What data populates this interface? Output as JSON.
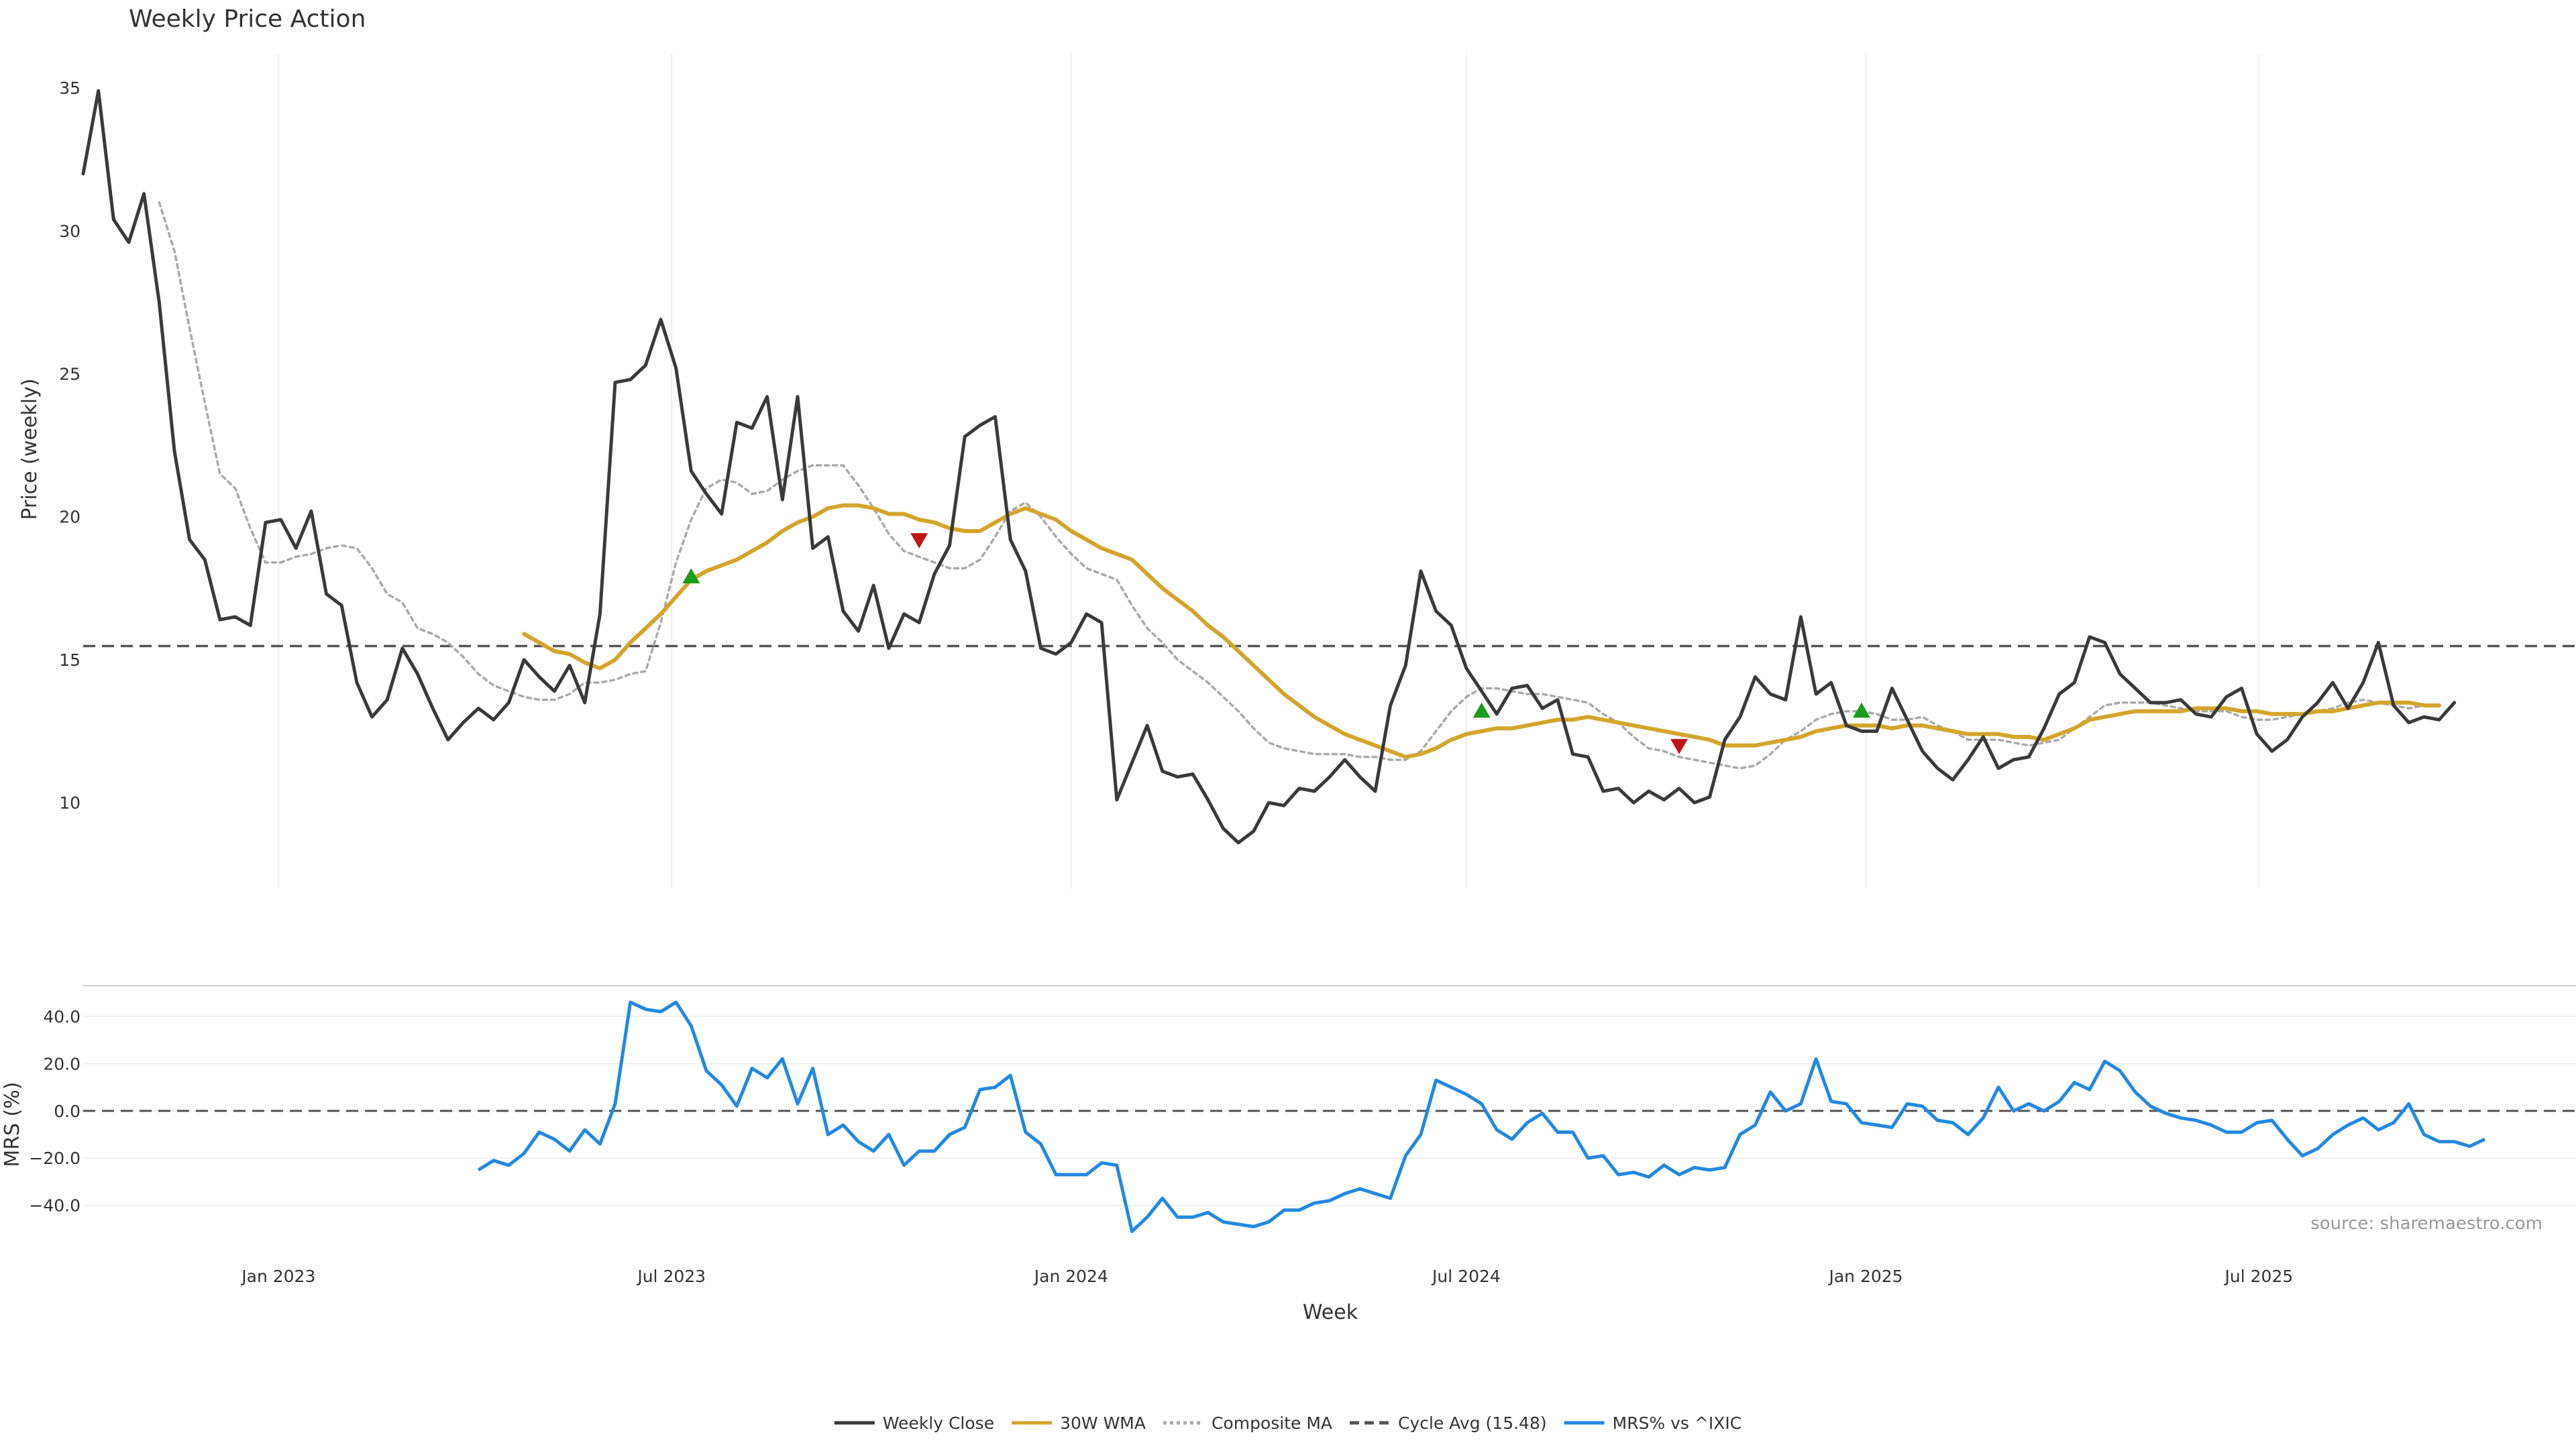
{
  "chart_data": {
    "type": "line",
    "title": "Weekly Price Action",
    "source": "source: sharemaestro.com",
    "xlabel": "Week",
    "x_range": [
      "2022-10-03",
      "2025-11-24"
    ],
    "x_ticks": [
      {
        "date": "2023-01-01",
        "label": "Jan 2023"
      },
      {
        "date": "2023-07-01",
        "label": "Jul 2023"
      },
      {
        "date": "2024-01-01",
        "label": "Jan 2024"
      },
      {
        "date": "2024-07-01",
        "label": "Jul 2024"
      },
      {
        "date": "2025-01-01",
        "label": "Jan 2025"
      },
      {
        "date": "2025-07-01",
        "label": "Jul 2025"
      }
    ],
    "price_panel": {
      "ylabel": "Price (weekly)",
      "ylim": [
        7,
        36.2
      ],
      "yticks": [
        10,
        15,
        20,
        25,
        30,
        35
      ],
      "cycle_avg": 15.48,
      "series": [
        {
          "key": "close",
          "name": "Weekly Close",
          "color": "#3a3a3a",
          "style": "solid",
          "start": "2022-10-03",
          "values": [
            32.0,
            34.9,
            30.4,
            29.6,
            31.3,
            27.5,
            22.3,
            19.2,
            18.5,
            16.4,
            16.5,
            16.2,
            19.8,
            19.9,
            18.9,
            20.2,
            17.3,
            16.9,
            14.2,
            13.0,
            13.6,
            15.4,
            14.5,
            13.3,
            12.2,
            12.8,
            13.3,
            12.9,
            13.5,
            15.0,
            14.4,
            13.9,
            14.8,
            13.5,
            16.6,
            24.7,
            24.8,
            25.3,
            26.9,
            25.2,
            21.6,
            20.8,
            20.1,
            23.3,
            23.1,
            24.2,
            20.6,
            24.2,
            18.9,
            19.3,
            16.7,
            16.0,
            17.6,
            15.4,
            16.6,
            16.3,
            18.0,
            19.0,
            22.8,
            23.2,
            23.5,
            19.2,
            18.1,
            15.4,
            15.2,
            15.6,
            16.6,
            16.3,
            10.1,
            11.4,
            12.7,
            11.1,
            10.9,
            11.0,
            10.1,
            9.1,
            8.6,
            9.0,
            10.0,
            9.9,
            10.5,
            10.4,
            10.9,
            11.5,
            10.9,
            10.4,
            13.4,
            14.8,
            18.1,
            16.7,
            16.2,
            14.7,
            13.9,
            13.1,
            14.0,
            14.1,
            13.3,
            13.6,
            11.7,
            11.6,
            10.4,
            10.5,
            10.0,
            10.4,
            10.1,
            10.5,
            10.0,
            10.2,
            12.2,
            13.0,
            14.4,
            13.8,
            13.6,
            16.5,
            13.8,
            14.2,
            12.7,
            12.5,
            12.5,
            14.0,
            12.9,
            11.8,
            11.2,
            10.8,
            11.5,
            12.3,
            11.2,
            11.5,
            11.6,
            12.6,
            13.8,
            14.2,
            15.8,
            15.6,
            14.5,
            14.0,
            13.5,
            13.5,
            13.6,
            13.1,
            13.0,
            13.7,
            14.0,
            12.4,
            11.8,
            12.2,
            13.0,
            13.5,
            14.2,
            13.3,
            14.2,
            15.6,
            13.4,
            12.8,
            13.0,
            12.9,
            13.5
          ]
        },
        {
          "key": "wma",
          "name": "30W WMA",
          "color": "#d4a52c",
          "style": "solid",
          "start": "2023-04-24",
          "values": [
            15.9,
            15.6,
            15.3,
            15.2,
            14.9,
            14.7,
            15.0,
            15.6,
            16.1,
            16.6,
            17.2,
            17.8,
            18.1,
            18.3,
            18.5,
            18.8,
            19.1,
            19.5,
            19.8,
            20.0,
            20.3,
            20.4,
            20.4,
            20.3,
            20.1,
            20.1,
            19.9,
            19.8,
            19.6,
            19.5,
            19.5,
            19.8,
            20.1,
            20.3,
            20.1,
            19.9,
            19.5,
            19.2,
            18.9,
            18.7,
            18.5,
            18.0,
            17.5,
            17.1,
            16.7,
            16.2,
            15.8,
            15.3,
            14.8,
            14.3,
            13.8,
            13.4,
            13.0,
            12.7,
            12.4,
            12.2,
            12.0,
            11.8,
            11.6,
            11.7,
            11.9,
            12.2,
            12.4,
            12.5,
            12.6,
            12.6,
            12.7,
            12.8,
            12.9,
            12.9,
            13.0,
            12.9,
            12.8,
            12.7,
            12.6,
            12.5,
            12.4,
            12.3,
            12.2,
            12.0,
            12.0,
            12.0,
            12.1,
            12.2,
            12.3,
            12.5,
            12.6,
            12.7,
            12.7,
            12.7,
            12.6,
            12.7,
            12.7,
            12.6,
            12.5,
            12.4,
            12.4,
            12.4,
            12.3,
            12.3,
            12.2,
            12.4,
            12.6,
            12.9,
            13.0,
            13.1,
            13.2,
            13.2,
            13.2,
            13.2,
            13.3,
            13.3,
            13.3,
            13.2,
            13.2,
            13.1,
            13.1,
            13.1,
            13.2,
            13.2,
            13.3,
            13.4,
            13.5,
            13.5,
            13.5,
            13.4,
            13.4
          ]
        },
        {
          "key": "composite",
          "name": "Composite MA",
          "color": "#aaaaaa",
          "style": "dotted",
          "start": "2022-11-07",
          "values": [
            31.0,
            29.3,
            26.6,
            24.0,
            21.5,
            21.0,
            19.6,
            18.4,
            18.4,
            18.6,
            18.7,
            18.9,
            19.0,
            18.9,
            18.2,
            17.3,
            17.0,
            16.1,
            15.9,
            15.6,
            15.1,
            14.5,
            14.1,
            13.9,
            13.7,
            13.6,
            13.6,
            13.8,
            14.2,
            14.2,
            14.3,
            14.5,
            14.6,
            16.3,
            18.4,
            19.9,
            21.0,
            21.3,
            21.2,
            20.8,
            20.9,
            21.3,
            21.6,
            21.8,
            21.8,
            21.8,
            21.1,
            20.3,
            19.4,
            18.8,
            18.6,
            18.4,
            18.2,
            18.2,
            18.5,
            19.3,
            20.2,
            20.5,
            20.0,
            19.3,
            18.7,
            18.2,
            18.0,
            17.8,
            16.9,
            16.1,
            15.6,
            15.0,
            14.6,
            14.2,
            13.7,
            13.2,
            12.6,
            12.1,
            11.9,
            11.8,
            11.7,
            11.7,
            11.7,
            11.6,
            11.6,
            11.5,
            11.5,
            11.8,
            12.5,
            13.2,
            13.7,
            14.0,
            14.0,
            13.9,
            13.8,
            13.8,
            13.7,
            13.6,
            13.5,
            13.1,
            12.8,
            12.3,
            11.9,
            11.8,
            11.6,
            11.5,
            11.4,
            11.3,
            11.2,
            11.3,
            11.7,
            12.2,
            12.5,
            12.9,
            13.1,
            13.2,
            13.2,
            13.1,
            12.9,
            12.9,
            13.0,
            12.7,
            12.5,
            12.2,
            12.2,
            12.2,
            12.1,
            12.0,
            12.1,
            12.2,
            12.6,
            13.0,
            13.4,
            13.5,
            13.5,
            13.5,
            13.4,
            13.3,
            13.2,
            13.2,
            13.2,
            13.0,
            12.9,
            12.9,
            13.0,
            13.1,
            13.2,
            13.3,
            13.5,
            13.6,
            13.5,
            13.4,
            13.3,
            13.4
          ]
        }
      ],
      "markers": [
        {
          "date": "2023-07-10",
          "value": 17.9,
          "direction": "up",
          "color": "#1a9e1a"
        },
        {
          "date": "2023-10-23",
          "value": 19.2,
          "direction": "down",
          "color": "#c01515"
        },
        {
          "date": "2024-07-08",
          "value": 13.2,
          "direction": "up",
          "color": "#1a9e1a"
        },
        {
          "date": "2024-10-07",
          "value": 12.0,
          "direction": "down",
          "color": "#c01515"
        },
        {
          "date": "2024-12-30",
          "value": 13.2,
          "direction": "up",
          "color": "#1a9e1a"
        }
      ]
    },
    "mrs_panel": {
      "ylabel": "MRS (%)",
      "ylim": [
        -52,
        53
      ],
      "yticks": [
        -40.0,
        -20.0,
        0.0,
        20.0,
        40.0
      ],
      "ytick_labels": [
        "−40.0",
        "−20.0",
        "0.0",
        "20.0",
        "40.0"
      ],
      "series": {
        "key": "mrs",
        "name": "MRS% vs ^IXIC",
        "color": "#2389e0",
        "start": "2023-04-03",
        "values": [
          -25,
          -21,
          -23,
          -18,
          -9,
          -12,
          -17,
          -8,
          -14,
          3,
          46,
          43,
          42,
          46,
          36,
          17,
          11,
          2,
          18,
          14,
          22,
          3,
          18,
          -10,
          -6,
          -13,
          -17,
          -10,
          -23,
          -17,
          -17,
          -10,
          -7,
          9,
          10,
          15,
          -9,
          -14,
          -27,
          -27,
          -27,
          -22,
          -23,
          -51,
          -45,
          -37,
          -45,
          -45,
          -43,
          -47,
          -48,
          -49,
          -47,
          -42,
          -42,
          -39,
          -38,
          -35,
          -33,
          -35,
          -37,
          -19,
          -10,
          13,
          10,
          7,
          3,
          -8,
          -12,
          -5,
          -1,
          -9,
          -9,
          -20,
          -19,
          -27,
          -26,
          -28,
          -23,
          -27,
          -24,
          -25,
          -24,
          -10,
          -6,
          8,
          0,
          3,
          22,
          4,
          3,
          -5,
          -6,
          -7,
          3,
          2,
          -4,
          -5,
          -10,
          -3,
          10,
          0,
          3,
          0,
          4,
          12,
          9,
          21,
          17,
          8,
          2,
          -1,
          -3,
          -4,
          -6,
          -9,
          -9,
          -5,
          -4,
          -12,
          -19,
          -16,
          -10,
          -6,
          -3,
          -8,
          -5,
          3,
          -10,
          -13,
          -13,
          -15,
          -12
        ]
      }
    },
    "legend": [
      {
        "label": "Weekly Close",
        "color": "#3a3a3a",
        "style": "solid"
      },
      {
        "label": "30W WMA",
        "color": "#d4a52c",
        "style": "solid"
      },
      {
        "label": "Composite MA",
        "color": "#aaaaaa",
        "style": "dotted"
      },
      {
        "label": "Cycle Avg (15.48)",
        "color": "#555555",
        "style": "dashed"
      },
      {
        "label": "MRS% vs ^IXIC",
        "color": "#2389e0",
        "style": "solid"
      }
    ],
    "legend_placement": "bottom-center",
    "grid": true
  }
}
